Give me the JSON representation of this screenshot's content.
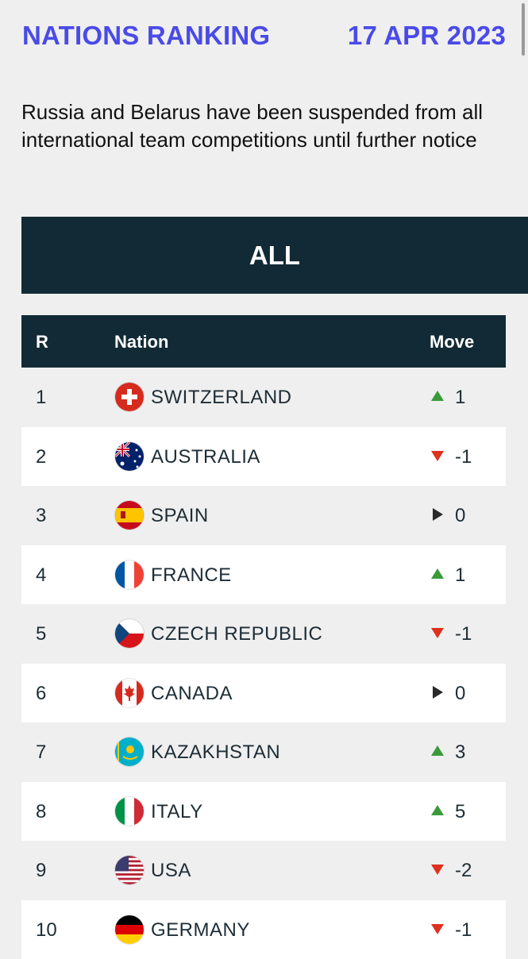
{
  "header": {
    "title": "NATIONS RANKING",
    "date": "17 APR 2023"
  },
  "notice": "Russia and Belarus have been suspended from all international team competitions until further notice",
  "filter": {
    "label": "ALL"
  },
  "table": {
    "columns": {
      "rank": "R",
      "nation": "Nation",
      "move": "Move"
    },
    "rows": [
      {
        "rank": "1",
        "nation": "SWITZERLAND",
        "flag": "switzerland-flag-icon",
        "direction": "up",
        "move": "1"
      },
      {
        "rank": "2",
        "nation": "AUSTRALIA",
        "flag": "australia-flag-icon",
        "direction": "down",
        "move": "-1"
      },
      {
        "rank": "3",
        "nation": "SPAIN",
        "flag": "spain-flag-icon",
        "direction": "same",
        "move": "0"
      },
      {
        "rank": "4",
        "nation": "FRANCE",
        "flag": "france-flag-icon",
        "direction": "up",
        "move": "1"
      },
      {
        "rank": "5",
        "nation": "CZECH REPUBLIC",
        "flag": "czech-republic-flag-icon",
        "direction": "down",
        "move": "-1"
      },
      {
        "rank": "6",
        "nation": "CANADA",
        "flag": "canada-flag-icon",
        "direction": "same",
        "move": "0"
      },
      {
        "rank": "7",
        "nation": "KAZAKHSTAN",
        "flag": "kazakhstan-flag-icon",
        "direction": "up",
        "move": "3"
      },
      {
        "rank": "8",
        "nation": "ITALY",
        "flag": "italy-flag-icon",
        "direction": "up",
        "move": "5"
      },
      {
        "rank": "9",
        "nation": "USA",
        "flag": "usa-flag-icon",
        "direction": "down",
        "move": "-2"
      },
      {
        "rank": "10",
        "nation": "GERMANY",
        "flag": "germany-flag-icon",
        "direction": "down",
        "move": "-1"
      }
    ]
  },
  "colors": {
    "accent": "#4a4ae8",
    "dark": "#112a35",
    "up": "#3a9a3a",
    "down": "#e0301e",
    "same": "#2a2a2a"
  }
}
